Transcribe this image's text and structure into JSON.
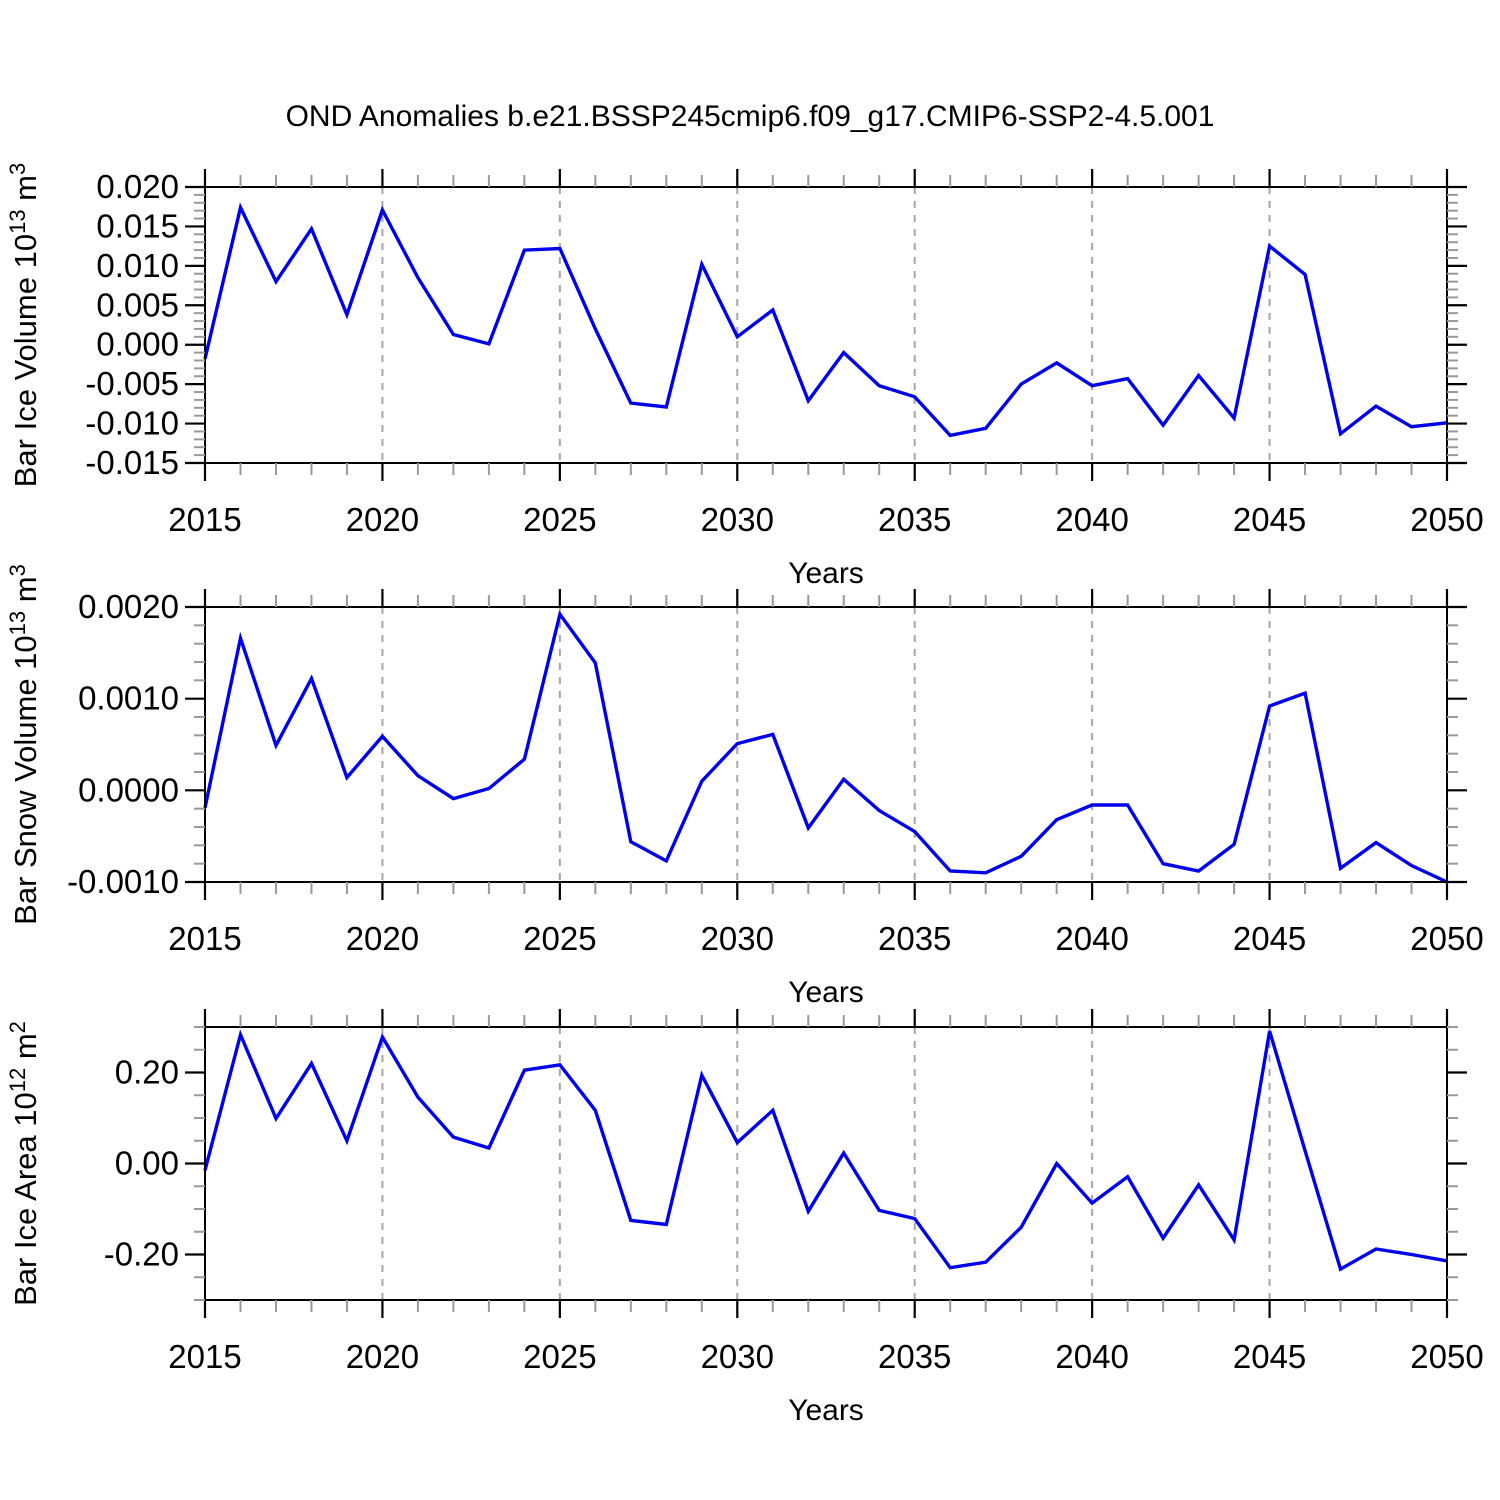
{
  "title": "OND Anomalies b.e21.BSSP245cmip6.f09_g17.CMIP6-SSP2-4.5.001",
  "xlabel": "Years",
  "colors": {
    "line": "#0000EE",
    "frame": "#000000",
    "major_tick": "#000000",
    "minor_tick": "#999999",
    "grid": "#A6A6A6",
    "text": "#000000",
    "background": "#FFFFFF"
  },
  "x_axis": {
    "years": [
      2015,
      2016,
      2017,
      2018,
      2019,
      2020,
      2021,
      2022,
      2023,
      2024,
      2025,
      2026,
      2027,
      2028,
      2029,
      2030,
      2031,
      2032,
      2033,
      2034,
      2035,
      2036,
      2037,
      2038,
      2039,
      2040,
      2041,
      2042,
      2043,
      2044,
      2045,
      2046,
      2047,
      2048,
      2049,
      2050
    ],
    "lim": [
      2015,
      2050
    ],
    "labeled_ticks": [
      2015,
      2020,
      2025,
      2030,
      2035,
      2040,
      2045,
      2050
    ],
    "tick_labels": [
      "2015",
      "2020",
      "2025",
      "2030",
      "2035",
      "2040",
      "2045",
      "2050"
    ],
    "minor_step": 1,
    "grid_years": [
      2020,
      2025,
      2030,
      2035,
      2040,
      2045
    ]
  },
  "chart_data": [
    {
      "type": "line",
      "name": "bar-ice-volume",
      "ylabel_parts": [
        {
          "text": "Bar Ice Volume 10"
        },
        {
          "text": "13",
          "sup": true
        },
        {
          "text": " m"
        },
        {
          "text": "3",
          "sup": true
        }
      ],
      "ylim": [
        -0.015,
        0.02
      ],
      "yticks": [
        {
          "v": 0.02,
          "label": "0.020"
        },
        {
          "v": 0.015,
          "label": "0.015"
        },
        {
          "v": 0.01,
          "label": "0.010"
        },
        {
          "v": 0.005,
          "label": "0.005"
        },
        {
          "v": 0.0,
          "label": "0.000"
        },
        {
          "v": -0.005,
          "label": "-0.005"
        },
        {
          "v": -0.01,
          "label": "-0.010"
        },
        {
          "v": -0.015,
          "label": "-0.015"
        }
      ],
      "yminor_step": 0.001,
      "values": [
        -0.0018,
        0.0174,
        0.008,
        0.0147,
        0.0038,
        0.0171,
        0.0085,
        0.0013,
        0.0001,
        0.012,
        0.0122,
        0.002,
        -0.0074,
        -0.0079,
        0.0102,
        0.001,
        0.0044,
        -0.0071,
        -0.001,
        -0.0052,
        -0.0066,
        -0.0115,
        -0.0106,
        -0.005,
        -0.0023,
        -0.0052,
        -0.0043,
        -0.0102,
        -0.0039,
        -0.0093,
        0.0125,
        0.0089,
        -0.0113,
        -0.0078,
        -0.0104,
        -0.0099
      ]
    },
    {
      "type": "line",
      "name": "bar-snow-volume",
      "ylabel_parts": [
        {
          "text": "Bar Snow Volume 10"
        },
        {
          "text": "13",
          "sup": true
        },
        {
          "text": " m"
        },
        {
          "text": "3",
          "sup": true
        }
      ],
      "ylim": [
        -0.001,
        0.002
      ],
      "yticks": [
        {
          "v": 0.002,
          "label": "0.0020"
        },
        {
          "v": 0.001,
          "label": "0.0010"
        },
        {
          "v": 0.0,
          "label": "0.0000"
        },
        {
          "v": -0.001,
          "label": "-0.0010"
        }
      ],
      "yminor_step": 0.0002,
      "values": [
        -0.00019,
        0.00166,
        0.00049,
        0.00122,
        0.00014,
        0.00059,
        0.00016,
        -9e-05,
        2e-05,
        0.00034,
        0.00192,
        0.00139,
        -0.00056,
        -0.00077,
        0.0001,
        0.00051,
        0.00061,
        -0.00041,
        0.00012,
        -0.00022,
        -0.00045,
        -0.00088,
        -0.0009,
        -0.00072,
        -0.00032,
        -0.00016,
        -0.00016,
        -0.0008,
        -0.00088,
        -0.00059,
        0.00092,
        0.00106,
        -0.00085,
        -0.00057,
        -0.00082,
        -0.001
      ]
    },
    {
      "type": "line",
      "name": "bar-ice-area",
      "ylabel_parts": [
        {
          "text": "Bar Ice Area 10"
        },
        {
          "text": "12",
          "sup": true
        },
        {
          "text": " m"
        },
        {
          "text": "2",
          "sup": true
        }
      ],
      "ylim": [
        -0.3,
        0.3
      ],
      "yticks": [
        {
          "v": 0.2,
          "label": "0.20"
        },
        {
          "v": 0.0,
          "label": "0.00"
        },
        {
          "v": -0.2,
          "label": "-0.20"
        }
      ],
      "yminor_step": 0.05,
      "values": [
        -0.015,
        0.283,
        0.099,
        0.22,
        0.05,
        0.278,
        0.146,
        0.058,
        0.034,
        0.205,
        0.217,
        0.117,
        -0.125,
        -0.134,
        0.194,
        0.046,
        0.117,
        -0.105,
        0.023,
        -0.103,
        -0.121,
        -0.229,
        -0.217,
        -0.14,
        0.0,
        -0.087,
        -0.029,
        -0.164,
        -0.047,
        -0.168,
        0.291,
        0.028,
        -0.232,
        -0.188,
        -0.2,
        -0.214
      ]
    }
  ]
}
